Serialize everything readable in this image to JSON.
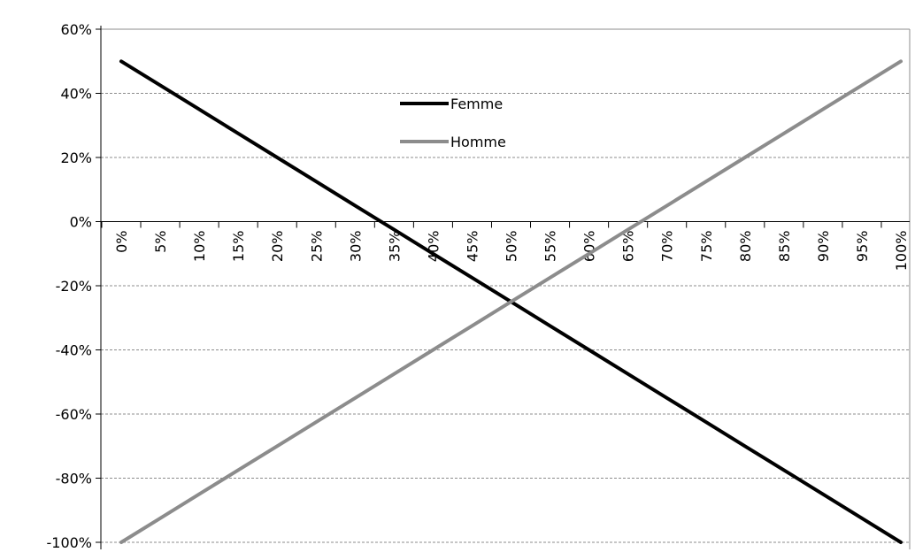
{
  "chart_data": {
    "type": "line",
    "title": "",
    "xlabel": "",
    "ylabel": "",
    "x": [
      "0%",
      "5%",
      "10%",
      "15%",
      "20%",
      "25%",
      "30%",
      "35%",
      "40%",
      "45%",
      "50%",
      "55%",
      "60%",
      "65%",
      "70%",
      "75%",
      "80%",
      "85%",
      "90%",
      "95%",
      "100%"
    ],
    "yticks": [
      "60%",
      "40%",
      "20%",
      "0%",
      "-20%",
      "-40%",
      "-60%",
      "-80%",
      "-100%"
    ],
    "ylim": [
      -100,
      60
    ],
    "grid": true,
    "legend_position": "top-center",
    "series": [
      {
        "name": "Femme",
        "color": "#000000",
        "values": [
          50,
          42.5,
          35,
          27.5,
          20,
          12.5,
          5,
          -2.5,
          -10,
          -17.5,
          -25,
          -32.5,
          -40,
          -47.5,
          -55,
          -62.5,
          -70,
          -77.5,
          -85,
          -92.5,
          -100
        ]
      },
      {
        "name": "Homme",
        "color": "#8c8c8c",
        "values": [
          -100,
          -92.5,
          -85,
          -77.5,
          -70,
          -62.5,
          -55,
          -47.5,
          -40,
          -32.5,
          -25,
          -17.5,
          -10,
          -2.5,
          5,
          12.5,
          20,
          27.5,
          35,
          42.5,
          50
        ]
      }
    ]
  }
}
